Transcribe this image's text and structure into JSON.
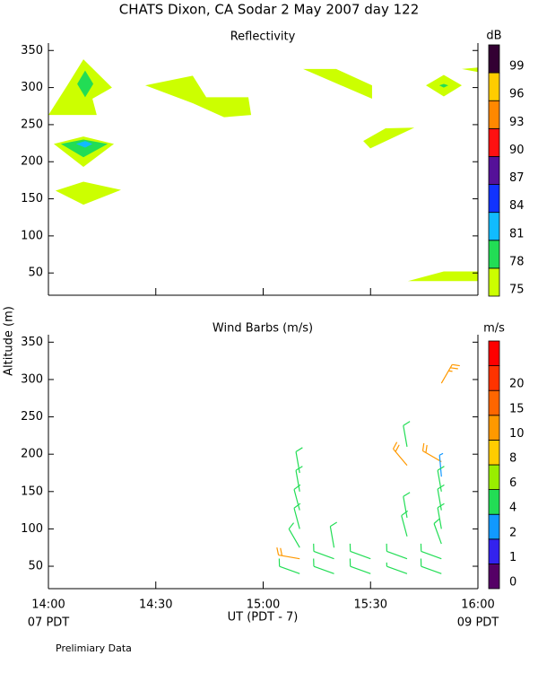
{
  "title": "CHATS Dixon, CA  Sodar   2 May 2007  day 122",
  "ylabel": "Altitude (m)",
  "note": "Prelimiary Data",
  "chart_data": [
    {
      "type": "contour",
      "title": "Reflectivity",
      "xlim": [
        14,
        16
      ],
      "xticks": [
        14,
        14.5,
        15,
        15.5,
        16
      ],
      "ylim": [
        20,
        360
      ],
      "yticks": [
        50,
        100,
        150,
        200,
        250,
        300,
        350
      ],
      "colorbar": {
        "label": "dB",
        "levels": [
          75,
          78,
          81,
          84,
          87,
          90,
          93,
          96,
          99
        ],
        "colors": [
          "#ccff00",
          "#22dd55",
          "#11bbff",
          "#1133ff",
          "#551199",
          "#ff1111",
          "#ff8800",
          "#ffcc00",
          "#330033"
        ]
      },
      "contours": [
        {
          "level": 75,
          "x": [
            14.0,
            14.088,
            14.163,
            14.296,
            14.205,
            14.225
          ],
          "y": [
            263,
            303,
            338,
            300,
            285,
            263
          ]
        },
        {
          "level": 78,
          "x": [
            14.134,
            14.171,
            14.209,
            14.171
          ],
          "y": [
            305,
            323,
            305,
            287
          ]
        },
        {
          "level": 75,
          "x": [
            14.025,
            14.163,
            14.305,
            14.163
          ],
          "y": [
            224,
            234,
            224,
            193
          ]
        },
        {
          "level": 78,
          "x": [
            14.058,
            14.163,
            14.276,
            14.163
          ],
          "y": [
            224,
            230,
            224,
            206
          ]
        },
        {
          "level": 81,
          "x": [
            14.129,
            14.171,
            14.205,
            14.171
          ],
          "y": [
            224,
            228,
            224,
            219
          ]
        },
        {
          "level": 75,
          "x": [
            14.033,
            14.163,
            14.338,
            14.163
          ],
          "y": [
            161,
            173,
            162,
            142
          ]
        },
        {
          "level": 75,
          "x": [
            14.451,
            14.672,
            14.735,
            14.931,
            14.944,
            14.818,
            14.672
          ],
          "y": [
            303,
            316,
            287,
            287,
            263,
            260,
            279
          ]
        },
        {
          "level": 75,
          "x": [
            15.186,
            15.34,
            15.507,
            15.507
          ],
          "y": [
            325,
            325,
            303,
            285
          ]
        },
        {
          "level": 75,
          "x": [
            15.466,
            15.57,
            15.704,
            15.499
          ],
          "y": [
            228,
            245,
            246,
            218
          ]
        },
        {
          "level": 75,
          "x": [
            15.758,
            15.841,
            15.925,
            15.841
          ],
          "y": [
            303,
            317,
            303,
            288
          ]
        },
        {
          "level": 78,
          "x": [
            15.82,
            15.841,
            15.862,
            15.841
          ],
          "y": [
            303,
            305,
            303,
            300
          ]
        },
        {
          "level": 75,
          "x": [
            15.925,
            16.0,
            16.0
          ],
          "y": [
            325,
            327,
            321
          ]
        },
        {
          "level": 75,
          "x": [
            15.674,
            15.841,
            16.0,
            16.0
          ],
          "y": [
            39,
            52,
            52,
            39
          ]
        }
      ]
    },
    {
      "type": "barbs",
      "title": "Wind Barbs (m/s)",
      "xlabel": "UT  (PDT - 7)",
      "xlabel_left": "07 PDT",
      "xlabel_right": "09 PDT",
      "xlim": [
        14,
        16
      ],
      "xticks": [
        {
          "value": 14,
          "label": "14:00"
        },
        {
          "value": 14.5,
          "label": "14:30"
        },
        {
          "value": 15,
          "label": "15:00"
        },
        {
          "value": 15.5,
          "label": "15:30"
        },
        {
          "value": 16,
          "label": "16:00"
        }
      ],
      "ylim": [
        20,
        360
      ],
      "yticks": [
        50,
        100,
        150,
        200,
        250,
        300,
        350
      ],
      "colorbar": {
        "label": "m/s",
        "levels": [
          0,
          1,
          2,
          4,
          6,
          8,
          10,
          15,
          20
        ],
        "colors": [
          "#550066",
          "#3322ee",
          "#1199ff",
          "#22dd55",
          "#99ee00",
          "#ffcc00",
          "#ff9900",
          "#ff6600",
          "#ff3300",
          "#ff0000"
        ]
      },
      "barbs": {
        "x": [
          15.17,
          15.17,
          15.17,
          15.17,
          15.17,
          15.17,
          15.17,
          15.33,
          15.33,
          15.33,
          15.5,
          15.5,
          15.67,
          15.67,
          15.67,
          15.67,
          15.67,
          15.67,
          15.83,
          15.83,
          15.83,
          15.83,
          15.83,
          15.83,
          15.83,
          15.83,
          15.83
        ],
        "y": [
          175,
          150,
          125,
          100,
          75,
          60,
          40,
          75,
          60,
          40,
          60,
          40,
          210,
          185,
          115,
          90,
          60,
          40,
          295,
          190,
          170,
          150,
          125,
          100,
          80,
          60,
          40
        ],
        "speed": [
          5,
          5,
          5,
          5,
          5,
          11,
          5,
          5,
          5,
          5,
          5,
          5,
          5,
          11,
          5,
          5,
          5,
          4,
          12,
          11,
          3,
          5,
          5,
          5,
          5,
          5,
          5
        ],
        "direction": [
          350,
          350,
          345,
          345,
          330,
          280,
          290,
          350,
          290,
          290,
          290,
          290,
          350,
          320,
          350,
          345,
          290,
          290,
          30,
          300,
          355,
          350,
          350,
          350,
          340,
          290,
          290
        ]
      }
    }
  ]
}
